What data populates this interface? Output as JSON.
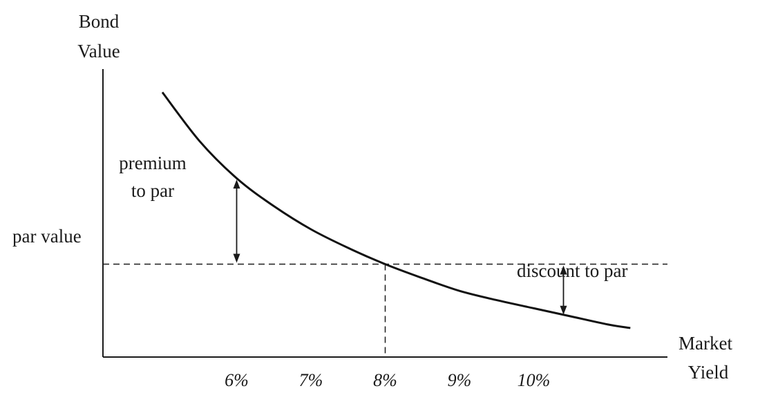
{
  "chart_data": {
    "type": "line",
    "title": "",
    "ylabel_lines": [
      "Bond",
      "Value"
    ],
    "xlabel_lines": [
      "Market",
      "Yield"
    ],
    "x_tick_labels": [
      "6%",
      "7%",
      "8%",
      "9%",
      "10%"
    ],
    "x_tick_values": [
      6,
      7,
      8,
      9,
      10
    ],
    "par_label": "par value",
    "par_yield": 8,
    "curve": {
      "x": [
        5,
        5.5,
        6,
        6.5,
        7,
        7.5,
        8,
        8.5,
        9,
        9.5,
        10,
        10.5,
        11,
        11.3
      ],
      "y": [
        1.74,
        1.53,
        1.37,
        1.25,
        1.15,
        1.07,
        1.0,
        0.94,
        0.885,
        0.845,
        0.81,
        0.775,
        0.74,
        0.725
      ]
    },
    "annotations": [
      {
        "id": "premium",
        "lines": [
          "premium",
          "to par"
        ],
        "x": 6.0
      },
      {
        "id": "discount",
        "lines": [
          "discount to par"
        ],
        "x": 10.4
      }
    ],
    "xlim": [
      4.2,
      11.8
    ],
    "ylim": [
      0.6,
      1.84
    ],
    "grid": false,
    "legend": "none"
  }
}
